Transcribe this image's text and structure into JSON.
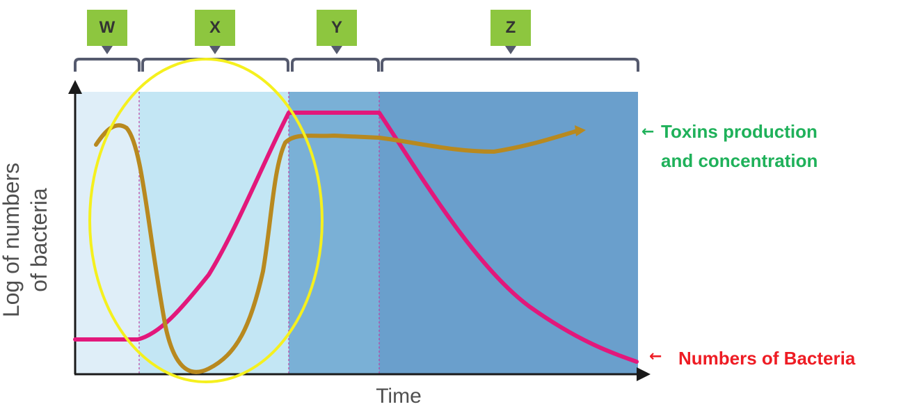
{
  "phases": [
    {
      "label": "W"
    },
    {
      "label": "X"
    },
    {
      "label": "Y"
    },
    {
      "label": "Z"
    }
  ],
  "axes": {
    "ylabel": "Log of numbers\nof bacteria",
    "xlabel": "Time"
  },
  "legend": {
    "toxins": "Toxins production\nand concentration",
    "bacteria": "Numbers of Bacteria"
  },
  "colors": {
    "phase_label_bg": "#8dc63f",
    "bacteria_curve": "#e2187b",
    "toxins_curve": "#b8891f",
    "toxins_text": "#1fb15a",
    "bacteria_text": "#ee1c24",
    "highlight_ellipse": "#f5f01e",
    "zone_lag": "#dfeef8",
    "zone_log": "#c3e6f4",
    "zone_stationary": "#7ab0d6",
    "zone_death": "#6a9fcc"
  },
  "annotations": {
    "highlight": "yellow ellipse around phases W and X",
    "arrows": [
      "arrow-left-icon",
      "arrow-left-icon"
    ]
  }
}
